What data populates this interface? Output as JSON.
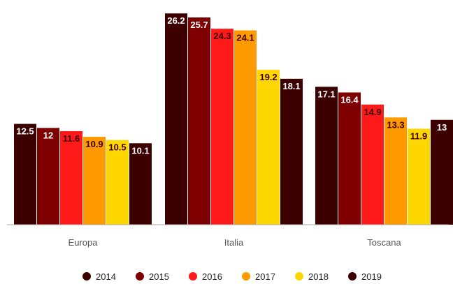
{
  "chart_data": {
    "type": "bar",
    "categories": [
      "Europa",
      "Italia",
      "Toscana"
    ],
    "series": [
      {
        "name": "2014",
        "color": "#3d0000",
        "label_color": "#ffffff",
        "values": [
          12.5,
          26.2,
          17.1
        ]
      },
      {
        "name": "2015",
        "color": "#7f0000",
        "label_color": "#ffffff",
        "values": [
          12,
          25.7,
          16.4
        ]
      },
      {
        "name": "2016",
        "color": "#ff1a1a",
        "label_color": "#3d0000",
        "values": [
          11.6,
          24.3,
          14.9
        ]
      },
      {
        "name": "2017",
        "color": "#ff9900",
        "label_color": "#3d0000",
        "values": [
          10.9,
          24.1,
          13.3
        ]
      },
      {
        "name": "2018",
        "color": "#ffd700",
        "label_color": "#3d0000",
        "values": [
          10.5,
          19.2,
          11.9
        ]
      },
      {
        "name": "2019",
        "color": "#3d0000",
        "label_color": "#ffffff",
        "values": [
          10.1,
          18.1,
          13
        ]
      }
    ],
    "value_labels": [
      [
        "12.5",
        "26.2",
        "17.1"
      ],
      [
        "12",
        "25.7",
        "16.4"
      ],
      [
        "11.6",
        "24.3",
        "14.9"
      ],
      [
        "10.9",
        "24.1",
        "13.3"
      ],
      [
        "10.5",
        "19.2",
        "11.9"
      ],
      [
        "10.1",
        "18.1",
        "13"
      ]
    ],
    "ylim": [
      0,
      27
    ],
    "grid": false,
    "legend_position": "bottom"
  }
}
